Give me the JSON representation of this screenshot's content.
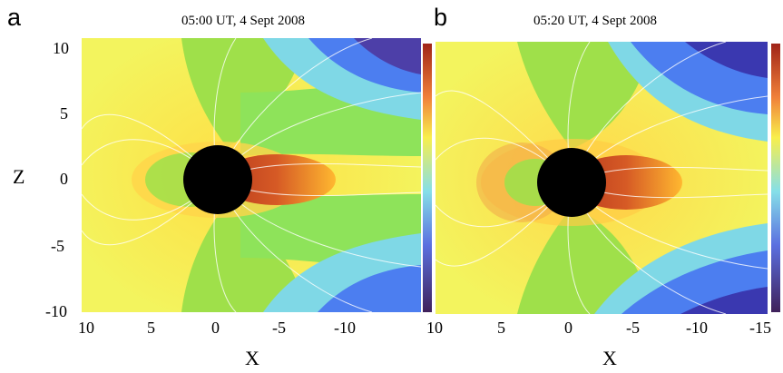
{
  "figure": {
    "panels": [
      {
        "letter": "a",
        "title": "05:00 UT, 4 Sept 2008",
        "x_ticks": [
          "10",
          "5",
          "0",
          "-5",
          "-10"
        ],
        "y_ticks": [
          "10",
          "5",
          "0",
          "-5",
          "-10"
        ],
        "xlabel": "X",
        "ylabel": "Z"
      },
      {
        "letter": "b",
        "title": "05:20 UT, 4 Sept 2008",
        "x_ticks": [
          "10",
          "5",
          "0",
          "-5",
          "-10",
          "-15"
        ],
        "xlabel": "X"
      }
    ],
    "colors": {
      "background": "#f2f25a",
      "planet": "#000000",
      "streamline": "#ffffff"
    }
  },
  "chart_data": [
    {
      "type": "heatmap",
      "title": "05:00 UT, 4 Sept 2008",
      "xlabel": "X",
      "ylabel": "Z",
      "xlim": [
        10,
        -14
      ],
      "ylim": [
        -10,
        10
      ],
      "x_ticks": [
        10,
        5,
        0,
        -5,
        -10
      ],
      "y_ticks": [
        10,
        5,
        0,
        -5,
        -10
      ],
      "planet_center": [
        0,
        0
      ],
      "planet_radius": 2.5
    },
    {
      "type": "heatmap",
      "title": "05:20 UT, 4 Sept 2008",
      "xlabel": "X",
      "ylabel": "",
      "xlim": [
        10,
        -15
      ],
      "ylim": [
        -10,
        10
      ],
      "x_ticks": [
        10,
        5,
        0,
        -5,
        -10,
        -15
      ],
      "planet_center": [
        0,
        0
      ],
      "planet_radius": 2.5
    }
  ]
}
